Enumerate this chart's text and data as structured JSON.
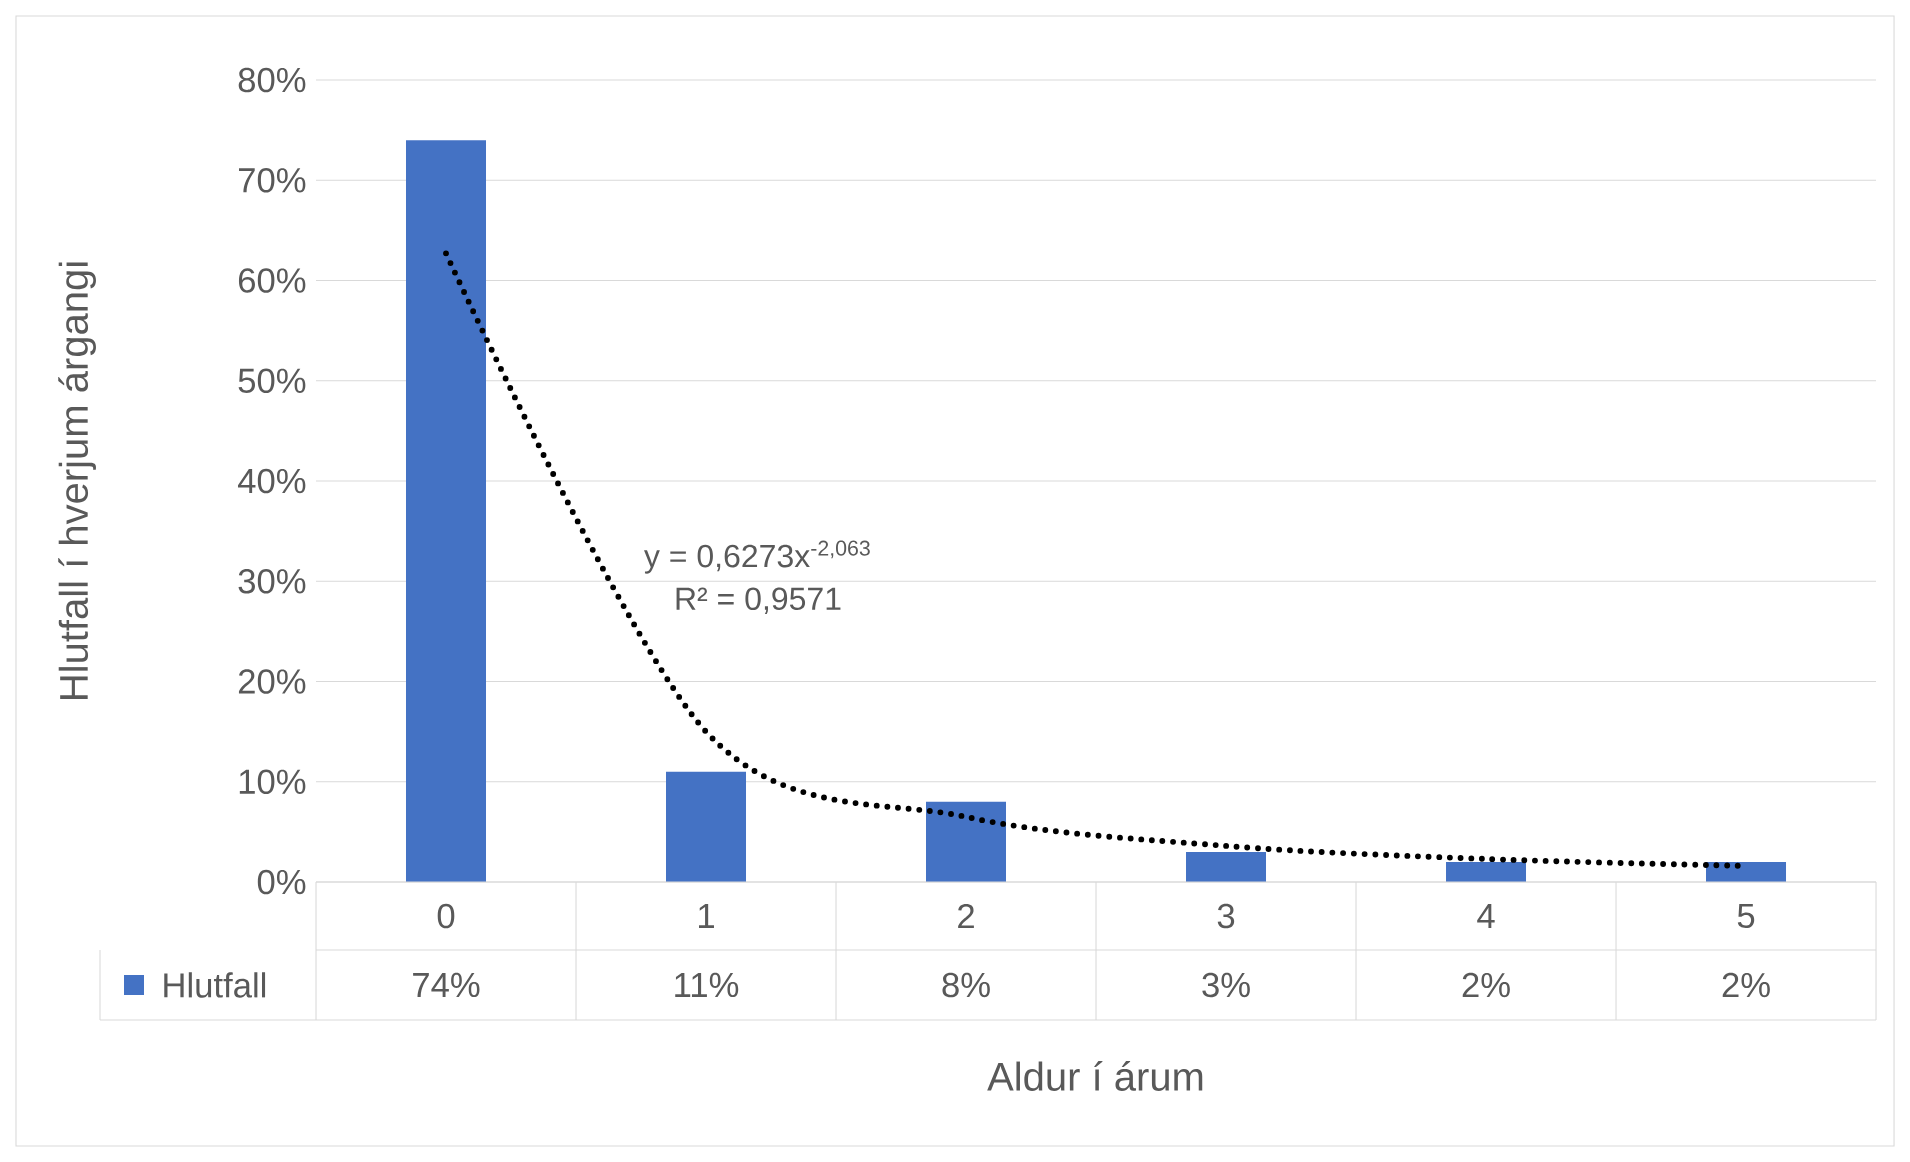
{
  "chart_data": {
    "type": "bar",
    "xlabel": "Aldur í árum",
    "ylabel": "Hlutfall í hverjum árgangi",
    "categories": [
      "0",
      "1",
      "2",
      "3",
      "4",
      "5"
    ],
    "series": [
      {
        "name": "Hlutfall",
        "color": "#4472c4",
        "values": [
          74,
          11,
          8,
          3,
          2,
          2
        ],
        "value_labels": [
          "74%",
          "11%",
          "8%",
          "3%",
          "2%",
          "2%"
        ]
      },
      {
        "type": "line",
        "color": "#000000",
        "line_style": "dotted",
        "values": [
          62.7,
          15.0,
          6.5,
          3.6,
          2.3,
          1.6
        ]
      }
    ],
    "ylim": [
      0,
      80
    ],
    "yticks": [
      {
        "value": 0,
        "label": "0%"
      },
      {
        "value": 10,
        "label": "10%"
      },
      {
        "value": 20,
        "label": "20%"
      },
      {
        "value": 30,
        "label": "30%"
      },
      {
        "value": 40,
        "label": "40%"
      },
      {
        "value": 50,
        "label": "50%"
      },
      {
        "value": 60,
        "label": "60%"
      },
      {
        "value": 70,
        "label": "70%"
      },
      {
        "value": 80,
        "label": "80%"
      }
    ],
    "annotations": [
      "y = 0,6273x$^{-2,063}$",
      "R² = 0,9571"
    ],
    "grid": "y",
    "legend": "bottom"
  }
}
